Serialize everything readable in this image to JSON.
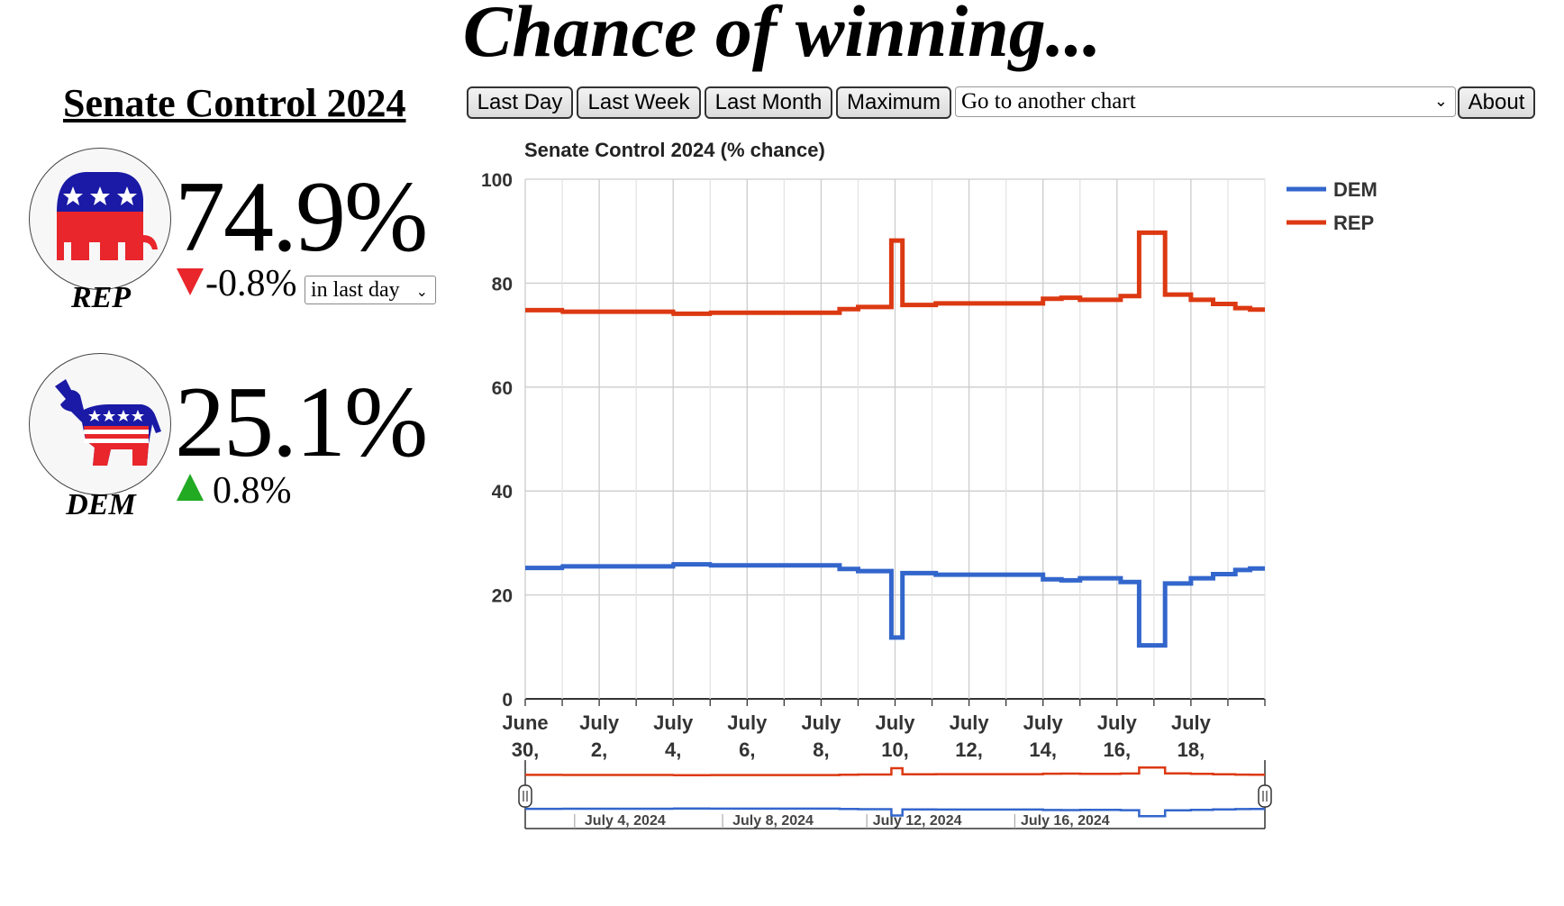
{
  "page": {
    "headline": "Chance of winning...",
    "market_title": "Senate Control 2024"
  },
  "parties": {
    "rep": {
      "label": "REP",
      "percent": "74.9%",
      "change": "-0.8%",
      "direction": "down",
      "color": "#e8262b",
      "logo_icon": "republican-elephant-icon"
    },
    "dem": {
      "label": "DEM",
      "percent": "25.1%",
      "change": "0.8%",
      "direction": "up",
      "color": "#22aa22",
      "logo_icon": "democratic-donkey-icon"
    }
  },
  "period_select": {
    "value": "in last day"
  },
  "toolbar": {
    "last_day": "Last Day",
    "last_week": "Last Week",
    "last_month": "Last Month",
    "maximum": "Maximum",
    "goto_chart": "Go to another chart",
    "about": "About"
  },
  "chart_data": {
    "type": "line",
    "title": "Senate Control 2024 (% chance)",
    "ylim": [
      0,
      100
    ],
    "yticks": [
      0,
      20,
      40,
      60,
      80,
      100
    ],
    "grid": true,
    "legend_placement": "top-right",
    "xlim": [
      0,
      20.0
    ],
    "xticks": [
      {
        "x": 0,
        "line1": "June",
        "line2": "30,"
      },
      {
        "x": 2,
        "line1": "July",
        "line2": "2,"
      },
      {
        "x": 4,
        "line1": "July",
        "line2": "4,"
      },
      {
        "x": 6,
        "line1": "July",
        "line2": "6,"
      },
      {
        "x": 8,
        "line1": "July",
        "line2": "8,"
      },
      {
        "x": 10,
        "line1": "July",
        "line2": "10,"
      },
      {
        "x": 12,
        "line1": "July",
        "line2": "12,"
      },
      {
        "x": 14,
        "line1": "July",
        "line2": "14,"
      },
      {
        "x": 16,
        "line1": "July",
        "line2": "16,"
      },
      {
        "x": 18,
        "line1": "July",
        "line2": "18,"
      }
    ],
    "navigator_labels": [
      {
        "x": 2.7,
        "label": "July 4, 2024"
      },
      {
        "x": 6.7,
        "label": "July 8, 2024"
      },
      {
        "x": 10.6,
        "label": "July 12, 2024"
      },
      {
        "x": 14.6,
        "label": "July 16, 2024"
      }
    ],
    "series": [
      {
        "name": "DEM",
        "color": "#3366cc",
        "x": [
          0,
          1,
          1.01,
          4,
          4.01,
          5,
          5.01,
          8.5,
          8.5,
          9,
          9,
          9.9,
          9.9,
          10.2,
          10.2,
          11.1,
          11.1,
          14,
          14,
          14.5,
          14.5,
          15,
          15,
          16.1,
          16.1,
          16.6,
          16.6,
          17.3,
          17.3,
          18,
          18,
          18.6,
          18.6,
          19.2,
          19.2,
          19.6,
          19.6,
          20.0
        ],
        "y": [
          25.2,
          25.2,
          25.5,
          25.5,
          25.9,
          25.9,
          25.7,
          25.7,
          25.0,
          25.0,
          24.6,
          24.6,
          11.8,
          11.8,
          24.2,
          24.2,
          23.9,
          23.9,
          23.0,
          23.0,
          22.8,
          22.8,
          23.2,
          23.2,
          22.5,
          22.5,
          10.3,
          10.3,
          22.2,
          22.2,
          23.2,
          23.2,
          24.0,
          24.0,
          24.8,
          24.8,
          25.1,
          25.1
        ]
      },
      {
        "name": "REP",
        "color": "#dc3912",
        "x": [
          0,
          1,
          1.01,
          4,
          4.01,
          5,
          5.01,
          8.5,
          8.5,
          9,
          9,
          9.9,
          9.9,
          10.2,
          10.2,
          11.1,
          11.1,
          14,
          14,
          14.5,
          14.5,
          15,
          15,
          16.1,
          16.1,
          16.6,
          16.6,
          17.3,
          17.3,
          18,
          18,
          18.6,
          18.6,
          19.2,
          19.2,
          19.6,
          19.6,
          20.0
        ],
        "y": [
          74.8,
          74.8,
          74.5,
          74.5,
          74.1,
          74.1,
          74.3,
          74.3,
          75.0,
          75.0,
          75.4,
          75.4,
          88.2,
          88.2,
          75.8,
          75.8,
          76.1,
          76.1,
          77.0,
          77.0,
          77.2,
          77.2,
          76.8,
          76.8,
          77.5,
          77.5,
          89.7,
          89.7,
          77.8,
          77.8,
          76.8,
          76.8,
          76.0,
          76.0,
          75.2,
          75.2,
          74.9,
          74.9
        ]
      }
    ]
  }
}
